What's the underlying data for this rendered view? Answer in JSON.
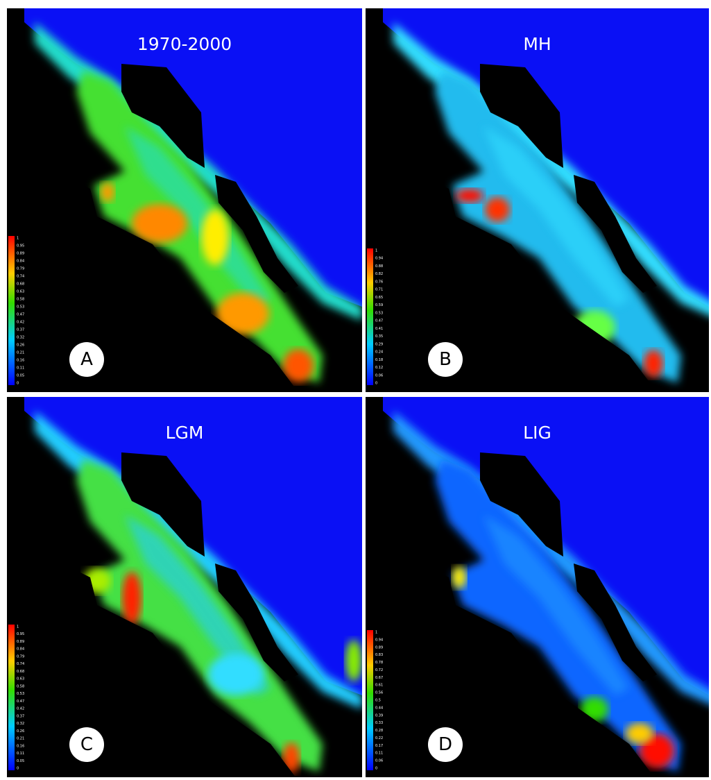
{
  "panels": [
    {
      "title": "1970-2000",
      "letter": "A",
      "legend_labels": [
        "1",
        "0.95",
        "0.89",
        "0.84",
        "0.79",
        "0.74",
        "0.68",
        "0.63",
        "0.58",
        "0.53",
        "0.47",
        "0.42",
        "0.37",
        "0.32",
        "0.26",
        "0.21",
        "0.16",
        "0.11",
        "0.05",
        "0"
      ]
    },
    {
      "title": "MH",
      "letter": "B",
      "legend_labels": [
        "1",
        "0.94",
        "0.88",
        "0.82",
        "0.76",
        "0.71",
        "0.65",
        "0.59",
        "0.53",
        "0.47",
        "0.41",
        "0.35",
        "0.29",
        "0.24",
        "0.18",
        "0.12",
        "0.06",
        "0"
      ]
    },
    {
      "title": "LGM",
      "letter": "C",
      "legend_labels": [
        "1",
        "0.95",
        "0.89",
        "0.84",
        "0.79",
        "0.74",
        "0.68",
        "0.63",
        "0.58",
        "0.53",
        "0.47",
        "0.42",
        "0.37",
        "0.32",
        "0.26",
        "0.21",
        "0.16",
        "0.11",
        "0.05",
        "0"
      ]
    },
    {
      "title": "LIG",
      "letter": "D",
      "legend_labels": [
        "1",
        "0.94",
        "0.89",
        "0.83",
        "0.78",
        "0.72",
        "0.67",
        "0.61",
        "0.56",
        "0.5",
        "0.44",
        "0.39",
        "0.33",
        "0.28",
        "0.22",
        "0.17",
        "0.11",
        "0.06",
        "0"
      ]
    }
  ]
}
